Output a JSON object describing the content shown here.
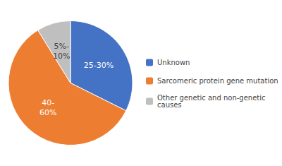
{
  "chart_data": {
    "type": "pie",
    "categories": [
      "Unknown",
      "Sarcomeric protein gene mutation",
      "Other genetic and non-genetic\ncauses"
    ],
    "values": [
      27.5,
      50.0,
      7.5
    ],
    "value_labels": [
      "25-30%",
      "40-\n60%",
      "5%-\n10%"
    ],
    "colors": [
      "#4472C4",
      "#ED7D31",
      "#BFBFBF"
    ],
    "data_labels": true,
    "legend": "right"
  }
}
